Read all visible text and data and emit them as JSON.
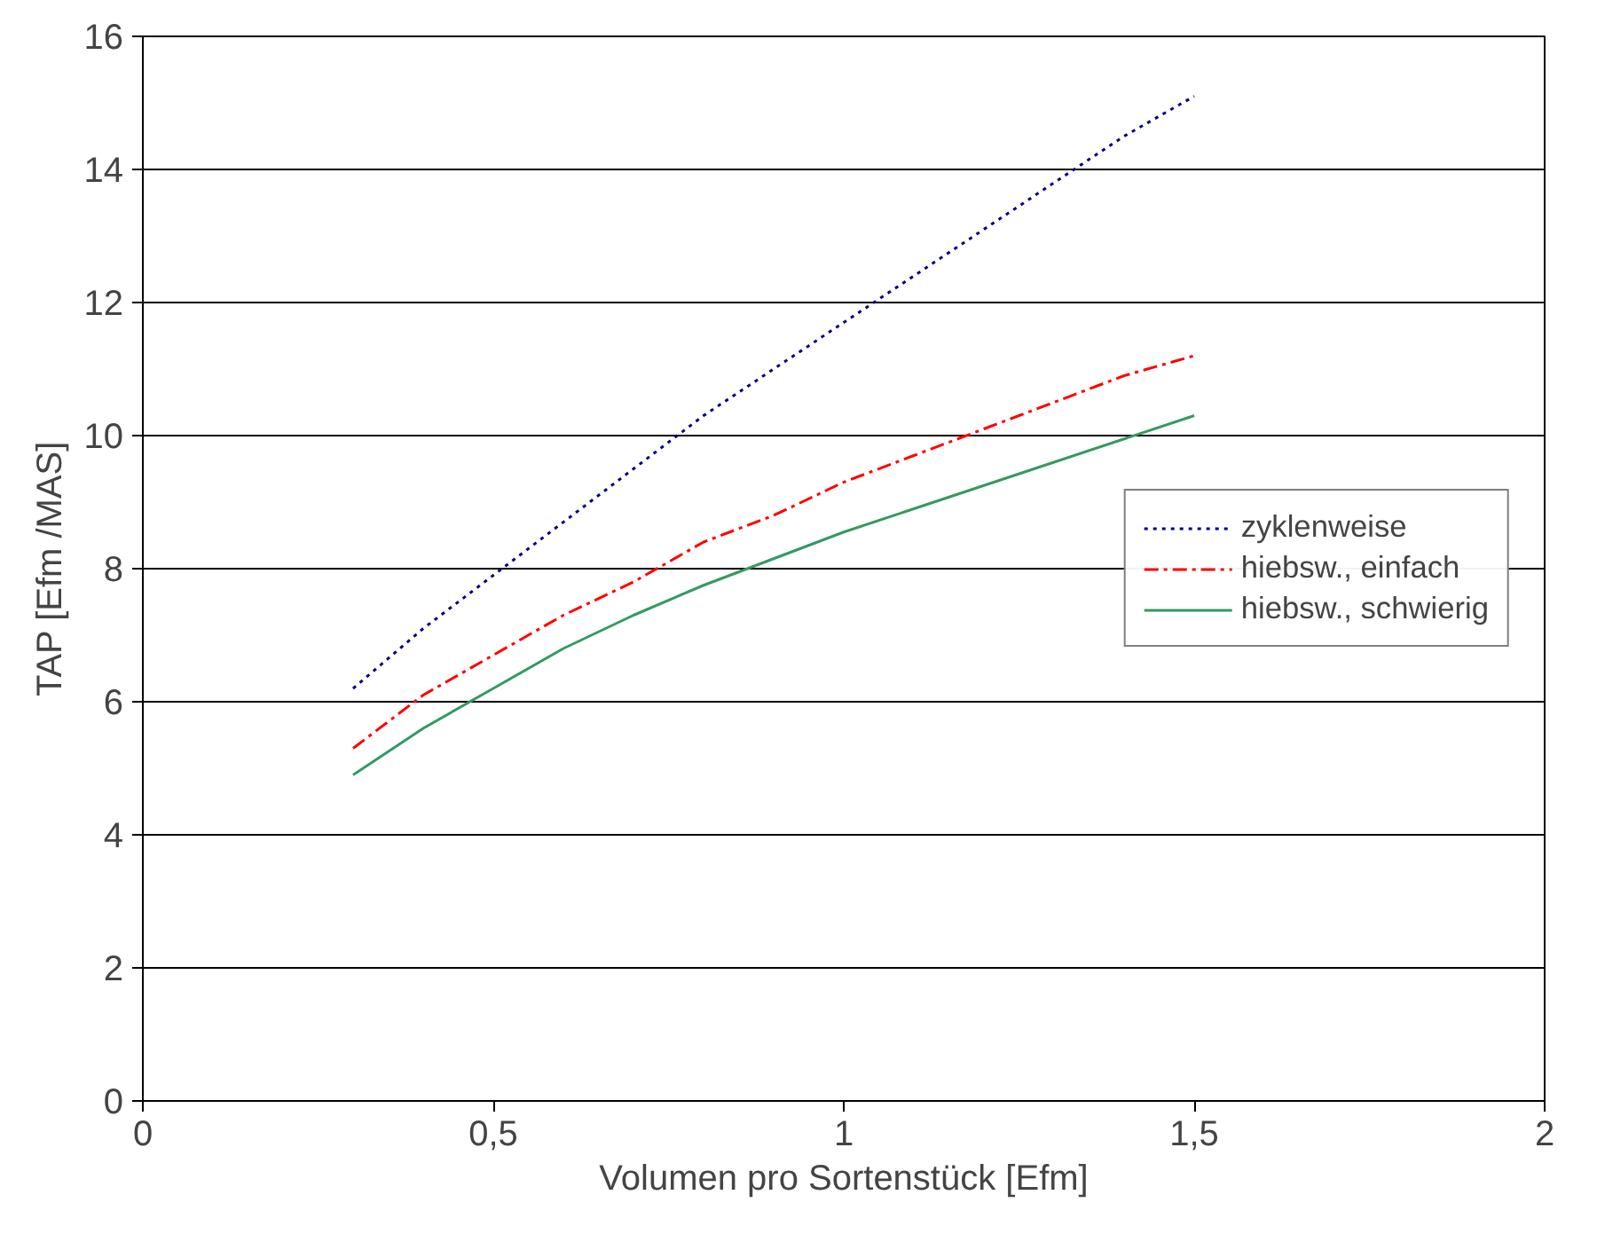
{
  "chart_data": {
    "type": "line",
    "xlabel": "Volumen pro Sortenstück [Efm]",
    "ylabel": "TAP [Efm /MAS]",
    "xlim": [
      0,
      2
    ],
    "ylim": [
      0,
      16
    ],
    "xticks": [
      0,
      {
        "value": 0.5,
        "label": "0,5"
      },
      1,
      {
        "value": 1.5,
        "label": "1,5"
      },
      2
    ],
    "yticks": [
      0,
      2,
      4,
      6,
      8,
      10,
      12,
      14,
      16
    ],
    "grid": "y",
    "legend": "right",
    "marker": "none",
    "x": [
      0.3,
      0.4,
      0.5,
      0.6,
      0.7,
      0.8,
      0.9,
      1.0,
      1.1,
      1.2,
      1.3,
      1.4,
      1.5
    ],
    "series": [
      {
        "name": "zyklenweise",
        "color": "#000080",
        "line_style": "dotted",
        "values": [
          6.2,
          7.1,
          7.9,
          8.7,
          9.5,
          10.3,
          11.0,
          11.7,
          12.4,
          13.1,
          13.8,
          14.5,
          15.1
        ]
      },
      {
        "name": "hiebsw., einfach",
        "color": "#ff0000",
        "line_style": "dashdot",
        "values": [
          5.3,
          6.1,
          6.7,
          7.3,
          7.8,
          8.4,
          8.8,
          9.3,
          9.7,
          10.1,
          10.5,
          10.9,
          11.2
        ]
      },
      {
        "name": "hiebsw., schwierig",
        "color": "#339966",
        "line_style": "solid",
        "values": [
          4.9,
          5.6,
          6.2,
          6.8,
          7.3,
          7.75,
          8.15,
          8.55,
          8.9,
          9.25,
          9.6,
          9.95,
          10.3
        ]
      }
    ]
  }
}
